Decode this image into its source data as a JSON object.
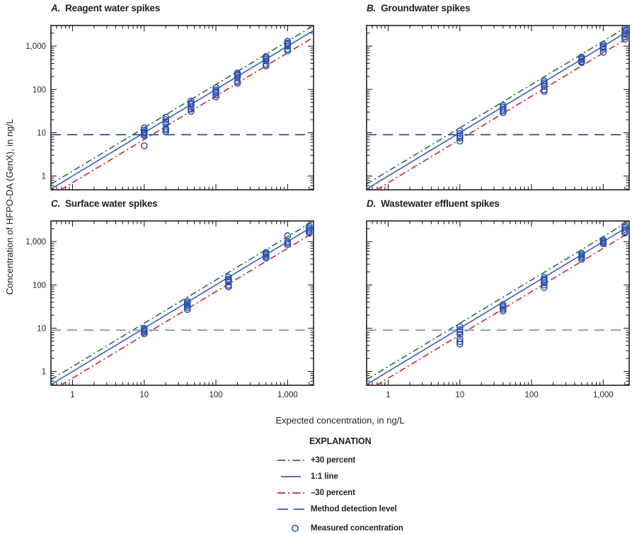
{
  "figure": {
    "y_axis_label": "Concentration of HFPO-DA (GenX), in ng/L",
    "x_axis_label": "Expected concentration, in ng/L"
  },
  "axes": {
    "scale": "log-log",
    "grid": false,
    "x_range": [
      0.5,
      2300
    ],
    "y_range": [
      0.48,
      3000
    ],
    "x_major_ticks": [
      1,
      10,
      100,
      1000
    ],
    "y_major_ticks": [
      1,
      10,
      100,
      1000
    ],
    "x_tick_labels": [
      "1",
      "10",
      "100",
      "1,000"
    ],
    "y_tick_labels": [
      "1",
      "10",
      "100",
      "1,000"
    ]
  },
  "colors": {
    "plus30": "#2c6b38",
    "one_to_one": "#3b5dc1",
    "minus30": "#c9252b",
    "mdl_top": "#3a57ab",
    "mdl_bottom": "#8397cf",
    "marker": "#2b50ae",
    "axis": "#231f20"
  },
  "reference_lines": {
    "plus30_factor": 1.3,
    "one_to_one_factor": 1.0,
    "minus30_factor": 0.7,
    "method_detection_level": 9
  },
  "explanation": {
    "title": "EXPLANATION",
    "items": [
      {
        "label": "+30 percent",
        "swatch": "dash-dot",
        "color_key": "plus30"
      },
      {
        "label": "1:1 line",
        "swatch": "solid",
        "color_key": "one_to_one"
      },
      {
        "label": "–30 percent",
        "swatch": "dash-dot",
        "color_key": "minus30"
      },
      {
        "label": "Method detection level",
        "swatch": "long-dash",
        "color_key": "mdl_top"
      },
      {
        "label": "Measured concentration",
        "swatch": "circle",
        "color_key": "marker"
      }
    ]
  },
  "chart_data": [
    {
      "type": "scatter",
      "panel_letter": "A.",
      "title": "Reagent water spikes",
      "clusters": [
        {
          "x": 10,
          "y": [
            13,
            11.5,
            10.5,
            10,
            9.3,
            8.6,
            5
          ]
        },
        {
          "x": 20,
          "y": [
            23,
            20,
            18,
            16,
            12.5,
            11.5,
            10.5
          ]
        },
        {
          "x": 45,
          "y": [
            54,
            48,
            45,
            40,
            35,
            31
          ]
        },
        {
          "x": 100,
          "y": [
            110,
            98,
            90,
            84,
            75,
            67
          ]
        },
        {
          "x": 200,
          "y": [
            240,
            222,
            208,
            190,
            150,
            138
          ]
        },
        {
          "x": 500,
          "y": [
            580,
            535,
            498,
            455,
            380,
            350
          ]
        },
        {
          "x": 1000,
          "y": [
            1300,
            1190,
            1090,
            990,
            850,
            780
          ]
        }
      ]
    },
    {
      "type": "scatter",
      "panel_letter": "B.",
      "title": "Groundwater spikes",
      "clusters": [
        {
          "x": 10,
          "y": [
            11,
            9.6,
            8.5,
            7.5,
            6.4
          ]
        },
        {
          "x": 40,
          "y": [
            43,
            39,
            35,
            32,
            29
          ]
        },
        {
          "x": 150,
          "y": [
            158,
            143,
            131,
            118,
            98,
            90
          ]
        },
        {
          "x": 500,
          "y": [
            560,
            522,
            486,
            443,
            418
          ]
        },
        {
          "x": 1000,
          "y": [
            1100,
            1000,
            930,
            850,
            720
          ]
        },
        {
          "x": 2000,
          "y": [
            2550,
            2300,
            2050,
            1850,
            1650,
            1450
          ]
        }
      ]
    },
    {
      "type": "scatter",
      "panel_letter": "C.",
      "title": "Surface water spikes",
      "clusters": [
        {
          "x": 10,
          "y": [
            10,
            9.4,
            8.8,
            8.1,
            7.4
          ]
        },
        {
          "x": 40,
          "y": [
            42,
            38.5,
            35.5,
            33,
            30,
            27
          ]
        },
        {
          "x": 150,
          "y": [
            152,
            136,
            126,
            117,
            98,
            90
          ]
        },
        {
          "x": 500,
          "y": [
            565,
            525,
            492,
            450,
            415
          ]
        },
        {
          "x": 1000,
          "y": [
            1380,
            1000,
            930,
            855
          ]
        },
        {
          "x": 2000,
          "y": [
            2280,
            2040,
            1875,
            1720,
            1560
          ]
        }
      ]
    },
    {
      "type": "scatter",
      "panel_letter": "D.",
      "title": "Wastewater effluent spikes",
      "clusters": [
        {
          "x": 10,
          "y": [
            10.8,
            9.3,
            8.2,
            7.2,
            5.7,
            4.9,
            4.3
          ]
        },
        {
          "x": 40,
          "y": [
            35,
            32.5,
            30,
            27.5,
            25
          ]
        },
        {
          "x": 150,
          "y": [
            149,
            135,
            124,
            112,
            99,
            87
          ]
        },
        {
          "x": 500,
          "y": [
            540,
            500,
            463,
            428,
            390
          ]
        },
        {
          "x": 1000,
          "y": [
            1075,
            1010,
            945,
            890
          ]
        },
        {
          "x": 2000,
          "y": [
            2380,
            2110,
            1900,
            1720,
            1570
          ]
        }
      ]
    }
  ]
}
